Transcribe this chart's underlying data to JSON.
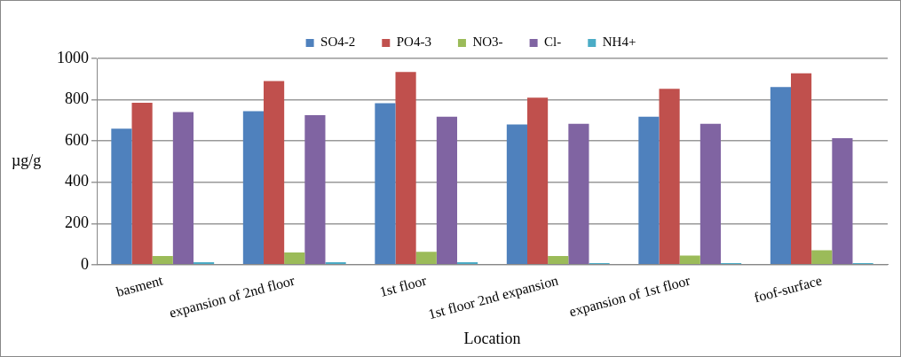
{
  "chart_data": {
    "type": "bar",
    "xlabel": "Location",
    "ylabel": "µg/g",
    "categories": [
      "basment",
      "expansion of 2nd floor",
      "1st floor",
      "1st floor 2nd expansion",
      "expansion of 1st floor",
      "foof-surface"
    ],
    "series": [
      {
        "name": "SO4-2",
        "color": "#4f81bd",
        "values": [
          660,
          745,
          783,
          680,
          718,
          862
        ]
      },
      {
        "name": "PO4-3",
        "color": "#c0504d",
        "values": [
          785,
          890,
          935,
          810,
          853,
          928
        ]
      },
      {
        "name": "NO3-",
        "color": "#9bbb59",
        "values": [
          42,
          60,
          63,
          42,
          45,
          70
        ]
      },
      {
        "name": "Cl-",
        "color": "#8064a2",
        "values": [
          740,
          725,
          718,
          683,
          683,
          613
        ]
      },
      {
        "name": "NH4+",
        "color": "#4bacc6",
        "values": [
          12,
          12,
          12,
          8,
          8,
          8
        ]
      }
    ],
    "ylim": [
      0,
      1000
    ],
    "yticks": [
      0,
      200,
      400,
      600,
      800,
      1000
    ],
    "grid": "y",
    "legend": "top"
  }
}
